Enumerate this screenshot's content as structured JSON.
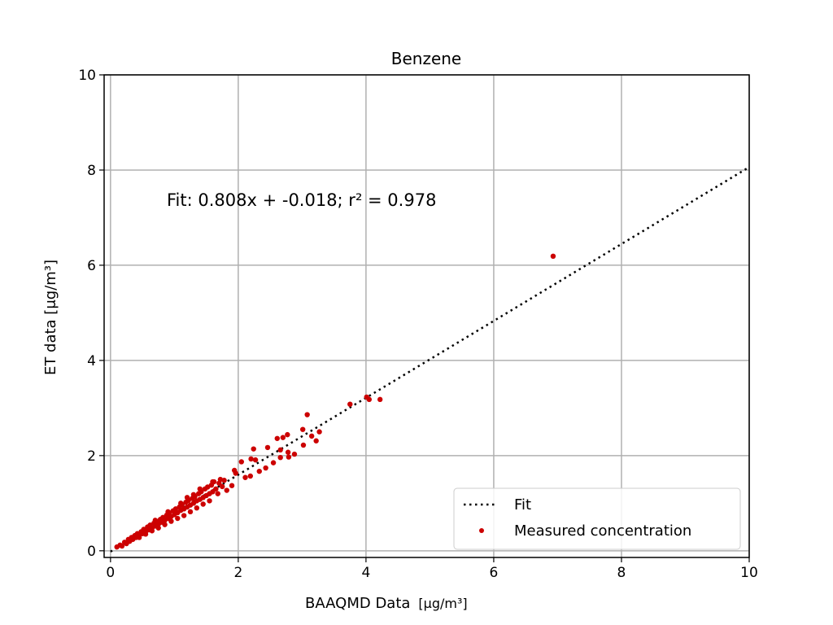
{
  "chart_data": {
    "type": "scatter",
    "title": "Benzene",
    "xlabel": "BAAQMD Data",
    "xlabel_unit": "[μg/m³]",
    "ylabel": "ET data [μg/m³]",
    "xlim": [
      -0.1,
      10
    ],
    "ylim": [
      -0.14,
      10
    ],
    "xticks": [
      0,
      2,
      4,
      6,
      8,
      10
    ],
    "yticks": [
      0,
      2,
      4,
      6,
      8,
      10
    ],
    "grid": true,
    "annotation": "Fit: 0.808x + -0.018; r² = 0.978",
    "legend": {
      "placement": "lower-right",
      "entries": [
        "Fit",
        "Measured concentration"
      ]
    },
    "fit": {
      "slope": 0.808,
      "intercept": -0.018,
      "style": "dotted",
      "color": "#000000"
    },
    "marker_color": "#cc0000",
    "points": [
      [
        6.93,
        6.19
      ],
      [
        4.01,
        3.23
      ],
      [
        4.05,
        3.18
      ],
      [
        4.22,
        3.18
      ],
      [
        3.75,
        3.08
      ],
      [
        3.08,
        2.86
      ],
      [
        3.01,
        2.55
      ],
      [
        3.27,
        2.5
      ],
      [
        3.15,
        2.41
      ],
      [
        3.22,
        2.31
      ],
      [
        3.02,
        2.22
      ],
      [
        2.61,
        2.36
      ],
      [
        2.77,
        2.44
      ],
      [
        2.7,
        2.38
      ],
      [
        2.24,
        2.14
      ],
      [
        2.46,
        2.17
      ],
      [
        2.66,
        2.12
      ],
      [
        2.78,
        2.07
      ],
      [
        2.88,
        2.03
      ],
      [
        2.79,
        1.97
      ],
      [
        2.66,
        1.96
      ],
      [
        2.2,
        1.93
      ],
      [
        2.27,
        1.91
      ],
      [
        2.05,
        1.87
      ],
      [
        2.55,
        1.85
      ],
      [
        2.43,
        1.74
      ],
      [
        2.33,
        1.67
      ],
      [
        1.94,
        1.69
      ],
      [
        1.96,
        1.63
      ],
      [
        2.11,
        1.54
      ],
      [
        2.19,
        1.57
      ],
      [
        1.9,
        1.37
      ],
      [
        1.82,
        1.27
      ],
      [
        0.1,
        0.08
      ],
      [
        0.15,
        0.12
      ],
      [
        0.18,
        0.1
      ],
      [
        0.22,
        0.18
      ],
      [
        0.25,
        0.15
      ],
      [
        0.28,
        0.24
      ],
      [
        0.3,
        0.2
      ],
      [
        0.33,
        0.28
      ],
      [
        0.35,
        0.24
      ],
      [
        0.38,
        0.32
      ],
      [
        0.4,
        0.28
      ],
      [
        0.42,
        0.36
      ],
      [
        0.45,
        0.33
      ],
      [
        0.48,
        0.4
      ],
      [
        0.5,
        0.36
      ],
      [
        0.52,
        0.45
      ],
      [
        0.55,
        0.4
      ],
      [
        0.58,
        0.5
      ],
      [
        0.6,
        0.44
      ],
      [
        0.62,
        0.54
      ],
      [
        0.65,
        0.48
      ],
      [
        0.68,
        0.58
      ],
      [
        0.7,
        0.52
      ],
      [
        0.72,
        0.62
      ],
      [
        0.75,
        0.56
      ],
      [
        0.78,
        0.66
      ],
      [
        0.8,
        0.6
      ],
      [
        0.82,
        0.7
      ],
      [
        0.85,
        0.64
      ],
      [
        0.88,
        0.75
      ],
      [
        0.9,
        0.68
      ],
      [
        0.92,
        0.8
      ],
      [
        0.95,
        0.72
      ],
      [
        0.98,
        0.84
      ],
      [
        1.0,
        0.76
      ],
      [
        1.02,
        0.88
      ],
      [
        1.05,
        0.8
      ],
      [
        1.08,
        0.92
      ],
      [
        1.1,
        0.85
      ],
      [
        1.12,
        0.97
      ],
      [
        1.15,
        0.88
      ],
      [
        1.18,
        1.02
      ],
      [
        1.2,
        0.92
      ],
      [
        1.22,
        1.06
      ],
      [
        1.25,
        0.96
      ],
      [
        1.28,
        1.1
      ],
      [
        1.3,
        1.0
      ],
      [
        1.32,
        1.14
      ],
      [
        1.35,
        1.05
      ],
      [
        1.38,
        1.2
      ],
      [
        1.4,
        1.08
      ],
      [
        1.42,
        1.24
      ],
      [
        1.45,
        1.12
      ],
      [
        1.48,
        1.3
      ],
      [
        1.5,
        1.16
      ],
      [
        1.52,
        1.34
      ],
      [
        1.55,
        1.2
      ],
      [
        1.58,
        1.38
      ],
      [
        1.6,
        1.24
      ],
      [
        1.62,
        1.45
      ],
      [
        1.65,
        1.3
      ],
      [
        1.7,
        1.42
      ],
      [
        1.72,
        1.5
      ],
      [
        1.75,
        1.35
      ],
      [
        1.78,
        1.48
      ],
      [
        1.68,
        1.2
      ],
      [
        1.55,
        1.05
      ],
      [
        1.45,
        0.98
      ],
      [
        1.35,
        0.9
      ],
      [
        1.25,
        0.82
      ],
      [
        1.15,
        0.74
      ],
      [
        1.05,
        0.68
      ],
      [
        0.95,
        0.62
      ],
      [
        0.85,
        0.55
      ],
      [
        0.75,
        0.48
      ],
      [
        0.65,
        0.42
      ],
      [
        0.55,
        0.35
      ],
      [
        0.45,
        0.28
      ],
      [
        1.1,
        1.0
      ],
      [
        1.3,
        1.18
      ],
      [
        0.9,
        0.82
      ],
      [
        0.7,
        0.64
      ],
      [
        1.6,
        1.45
      ],
      [
        1.4,
        1.3
      ],
      [
        1.2,
        1.12
      ]
    ]
  }
}
